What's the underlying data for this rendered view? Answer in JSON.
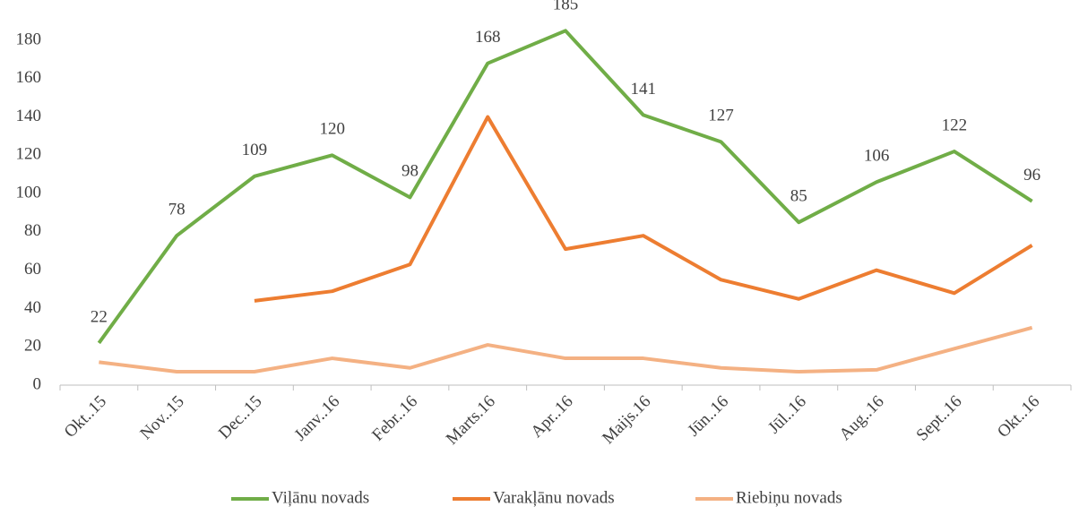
{
  "chart_data": {
    "type": "line",
    "categories": [
      "Okt..15",
      "Nov..15",
      "Dec..15",
      "Janv..16",
      "Febr..16",
      "Marts.16",
      "Apr..16",
      "Maijs.16",
      "Jūn..16",
      "Jūl..16",
      "Aug..16",
      "Sept..16",
      "Okt..16"
    ],
    "series": [
      {
        "name": "Viļānu novads",
        "color": "#70ad47",
        "values": [
          22,
          78,
          109,
          120,
          98,
          168,
          185,
          141,
          127,
          85,
          106,
          122,
          96
        ],
        "data_labels": true
      },
      {
        "name": "Varakļānu novads",
        "color": "#ed7d31",
        "values": [
          null,
          null,
          44,
          49,
          63,
          140,
          71,
          78,
          55,
          45,
          60,
          48,
          73
        ]
      },
      {
        "name": "Riebiņu novads",
        "color": "#f4b183",
        "values": [
          12,
          7,
          7,
          14,
          9,
          21,
          14,
          14,
          9,
          7,
          8,
          19,
          30
        ]
      }
    ],
    "ylim": [
      0,
      180
    ],
    "yticks": [
      0,
      20,
      40,
      60,
      80,
      100,
      120,
      140,
      160,
      180
    ],
    "grid": false,
    "legend": "bottom"
  }
}
